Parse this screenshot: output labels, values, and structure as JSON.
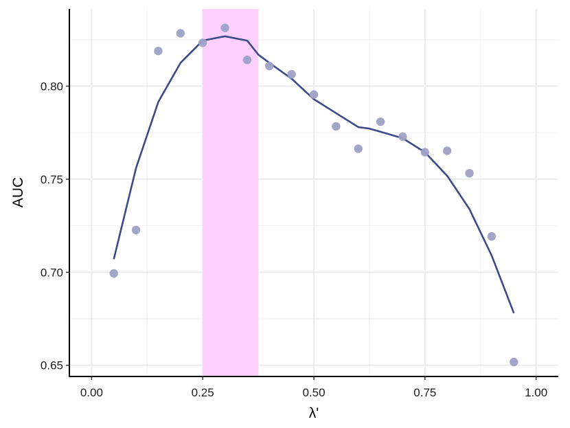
{
  "chart_data": {
    "type": "scatter",
    "xlabel": "λ'",
    "ylabel": "AUC",
    "xlim": [
      -0.05,
      1.05
    ],
    "ylim": [
      0.644,
      0.8415
    ],
    "x_ticks": [
      0.0,
      0.25,
      0.5,
      0.75,
      1.0
    ],
    "x_tick_labels": [
      "0.00",
      "0.25",
      "0.50",
      "0.75",
      "1.00"
    ],
    "y_ticks": [
      0.65,
      0.7,
      0.75,
      0.8
    ],
    "y_tick_labels": [
      "0.65",
      "0.70",
      "0.75",
      "0.80"
    ],
    "grid": true,
    "highlight_band": {
      "x_start": 0.25,
      "x_end": 0.375,
      "color": "#ffccff"
    },
    "points": {
      "color": "#9ea1c6",
      "x": [
        0.05,
        0.1,
        0.15,
        0.2,
        0.25,
        0.3,
        0.35,
        0.4,
        0.45,
        0.5,
        0.55,
        0.6,
        0.65,
        0.7,
        0.75,
        0.8,
        0.85,
        0.9,
        0.95
      ],
      "y": [
        0.6994,
        0.7227,
        0.8189,
        0.8284,
        0.8233,
        0.8313,
        0.8141,
        0.8108,
        0.8064,
        0.7955,
        0.7784,
        0.7664,
        0.7809,
        0.7729,
        0.7645,
        0.7653,
        0.7532,
        0.7193,
        0.6518
      ]
    },
    "smooth_line": {
      "color": "#3b4a8c",
      "x": [
        0.05,
        0.1,
        0.15,
        0.2,
        0.25,
        0.3,
        0.35,
        0.375,
        0.4,
        0.45,
        0.5,
        0.55,
        0.6,
        0.625,
        0.65,
        0.7,
        0.75,
        0.8,
        0.85,
        0.9,
        0.95
      ],
      "y": [
        0.707,
        0.756,
        0.7915,
        0.8125,
        0.8245,
        0.8268,
        0.8245,
        0.817,
        0.8125,
        0.804,
        0.793,
        0.7855,
        0.778,
        0.7772,
        0.7755,
        0.772,
        0.7645,
        0.7518,
        0.734,
        0.709,
        0.678
      ]
    }
  }
}
